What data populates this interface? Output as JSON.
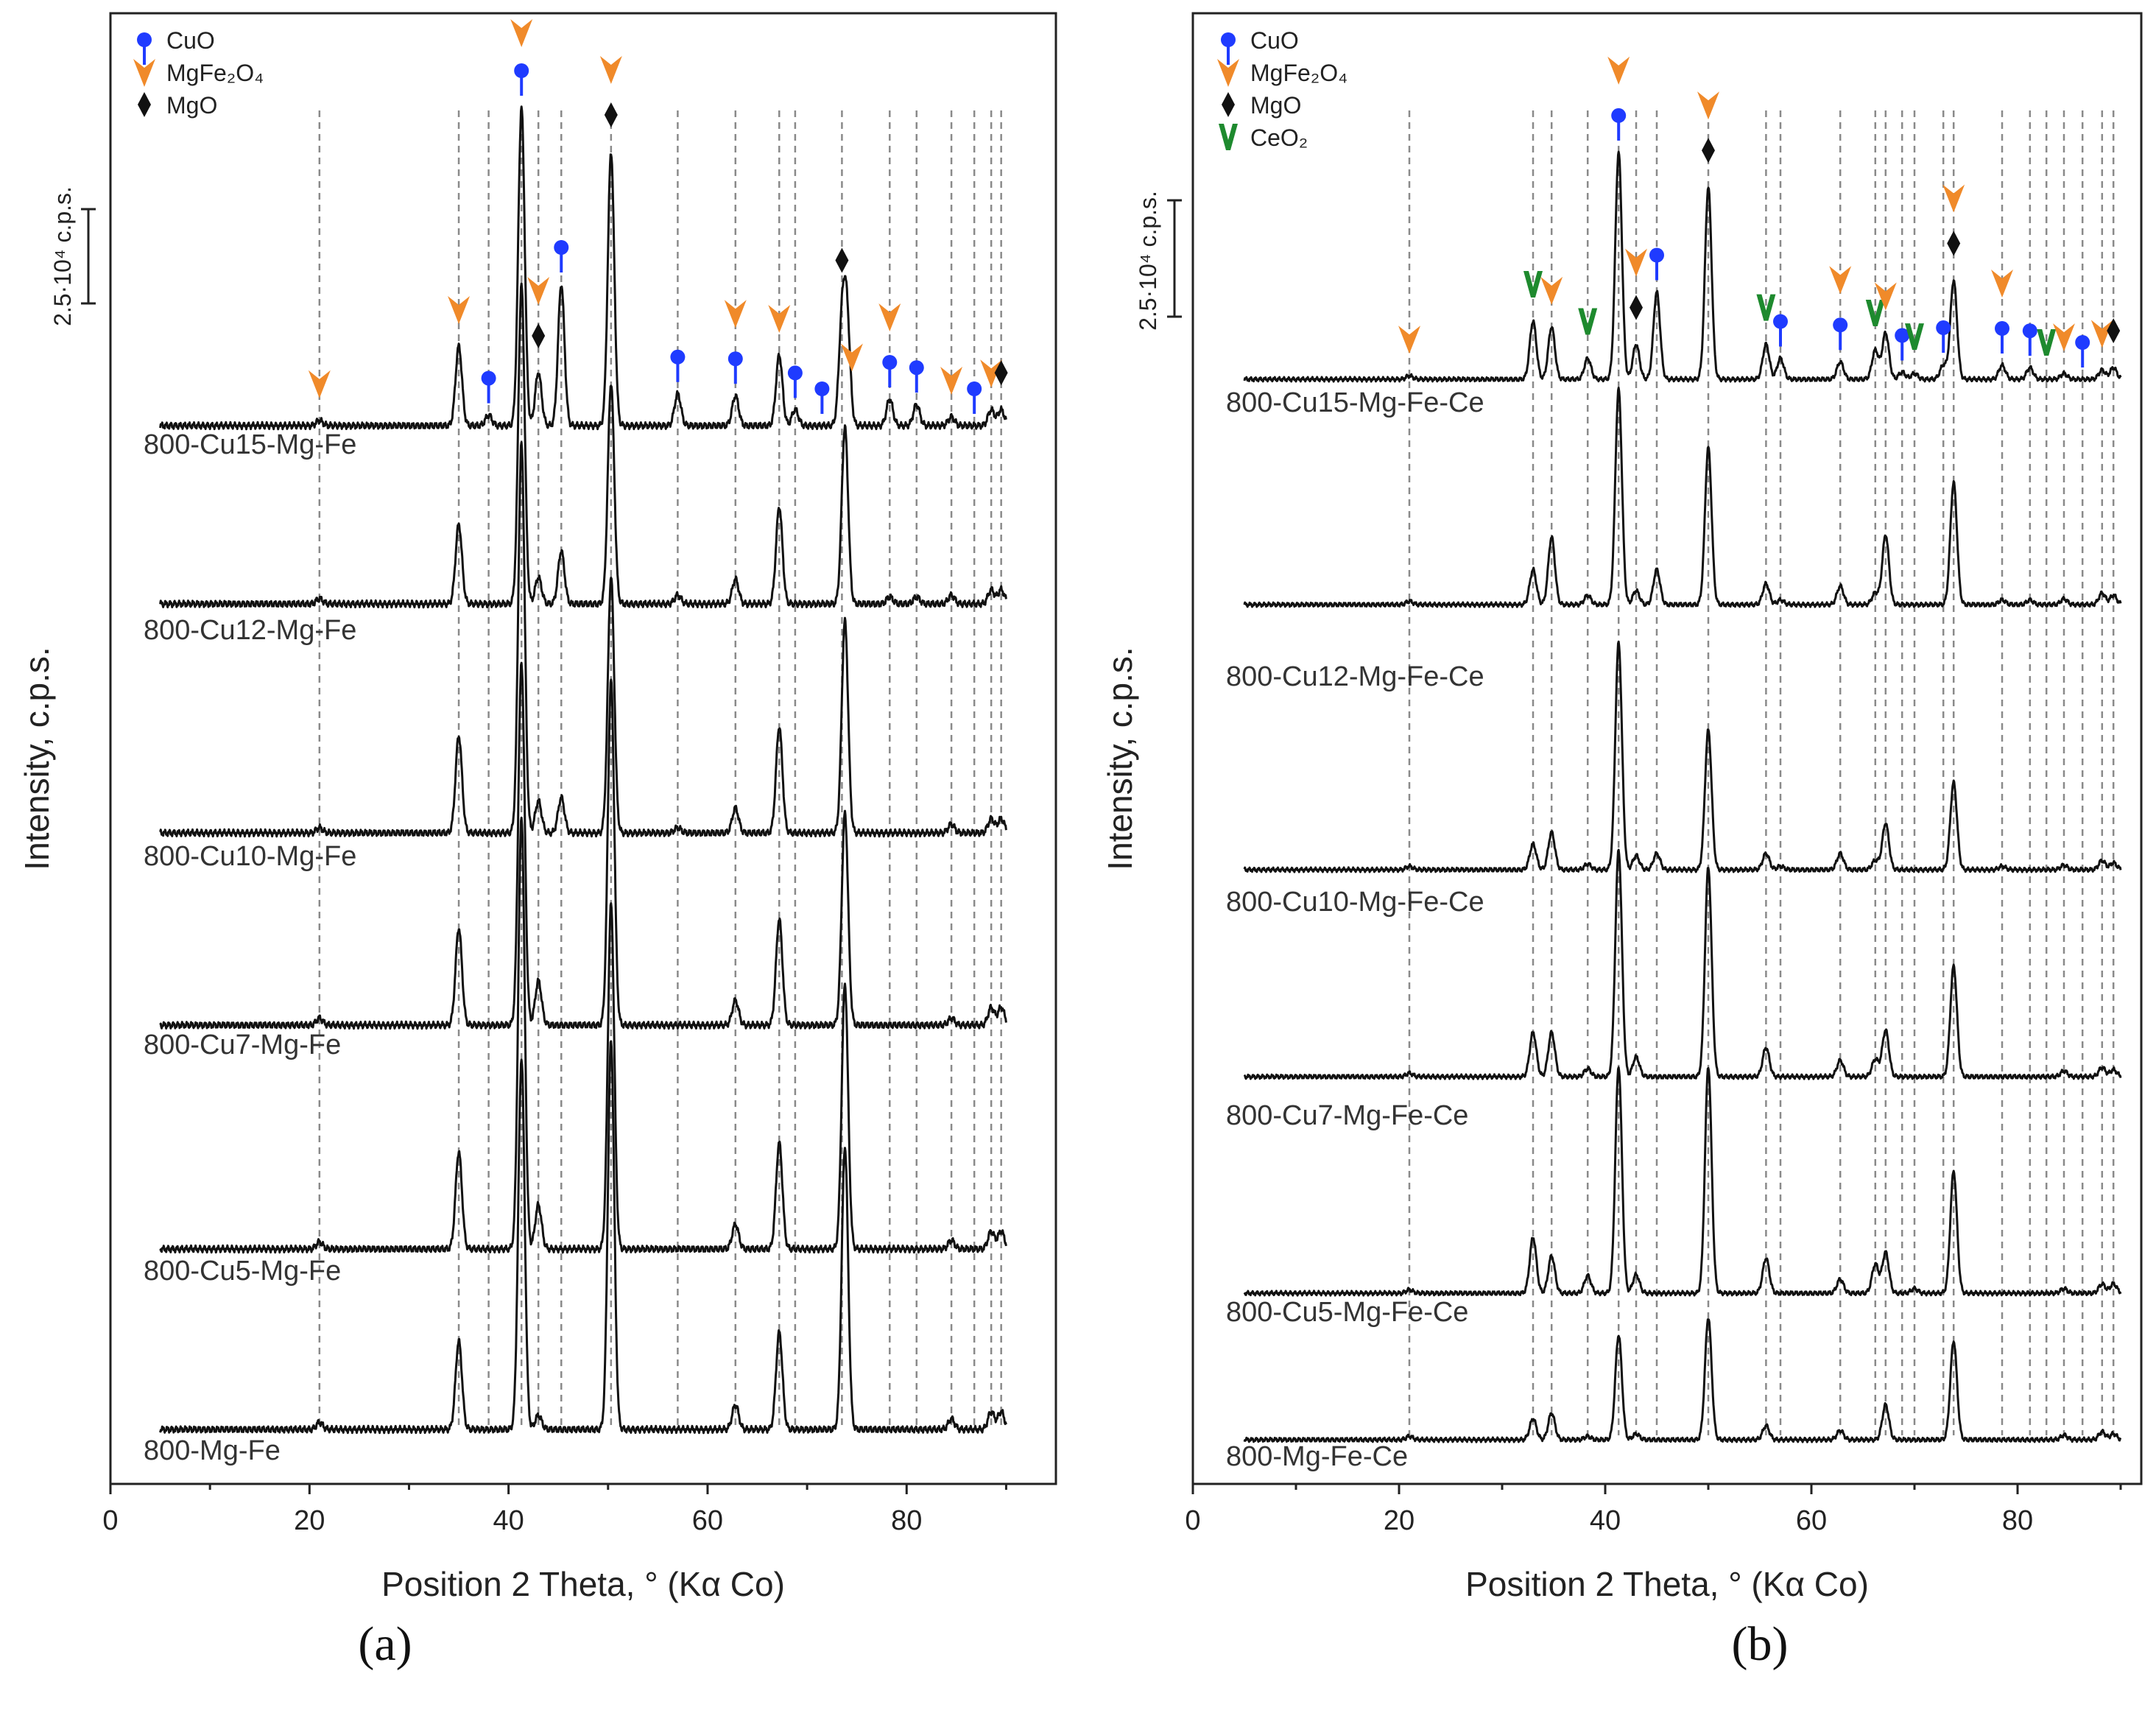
{
  "colors": {
    "CuO": "#1f3bff",
    "MgFe2O4": "#f08a2a",
    "MgO": "#111111",
    "CeO2": "#1e8a2e"
  },
  "chart_data": [
    {
      "type": "line",
      "panel_label": "(a)",
      "xlabel": "Position 2 Theta, ° (Kα Co)",
      "ylabel": "Intensity, c.p.s.",
      "xlim": [
        0,
        95
      ],
      "xticks": [
        "0",
        "20",
        "40",
        "60",
        "80"
      ],
      "scale_bar": "2.5·10⁴ c.p.s.",
      "legend": [
        {
          "name": "CuO",
          "marker": "CuO"
        },
        {
          "name": "MgFe₂O₄",
          "marker": "MgFe2O4"
        },
        {
          "name": "MgO",
          "marker": "MgO"
        }
      ],
      "reference_lines": [
        21.0,
        35.0,
        38.0,
        41.3,
        43.0,
        45.3,
        50.3,
        57.0,
        62.8,
        67.2,
        68.8,
        73.5,
        78.3,
        81.0,
        84.5,
        86.8,
        88.5,
        89.5
      ],
      "phase_markers": [
        {
          "phase": "MgFe2O4",
          "x": 21.0
        },
        {
          "phase": "MgFe2O4",
          "x": 35.0
        },
        {
          "phase": "CuO",
          "x": 38.0
        },
        {
          "phase": "CuO",
          "x": 41.3
        },
        {
          "phase": "MgFe2O4",
          "x": 41.3
        },
        {
          "phase": "MgO",
          "x": 43.0
        },
        {
          "phase": "MgFe2O4",
          "x": 43.0
        },
        {
          "phase": "CuO",
          "x": 45.3
        },
        {
          "phase": "MgO",
          "x": 50.3
        },
        {
          "phase": "MgFe2O4",
          "x": 50.3
        },
        {
          "phase": "CuO",
          "x": 57.0
        },
        {
          "phase": "CuO",
          "x": 62.8
        },
        {
          "phase": "MgFe2O4",
          "x": 62.8
        },
        {
          "phase": "MgFe2O4",
          "x": 67.2
        },
        {
          "phase": "CuO",
          "x": 68.8
        },
        {
          "phase": "CuO",
          "x": 71.5
        },
        {
          "phase": "MgO",
          "x": 73.5
        },
        {
          "phase": "MgFe2O4",
          "x": 74.5
        },
        {
          "phase": "CuO",
          "x": 78.3
        },
        {
          "phase": "MgFe2O4",
          "x": 78.3
        },
        {
          "phase": "CuO",
          "x": 81.0
        },
        {
          "phase": "MgFe2O4",
          "x": 84.5
        },
        {
          "phase": "CuO",
          "x": 86.8
        },
        {
          "phase": "MgFe2O4",
          "x": 88.5
        },
        {
          "phase": "MgO",
          "x": 89.5
        }
      ],
      "series": [
        {
          "name": "800-Cu15-Mg-Fe",
          "peaks": [
            [
              21.0,
              0.03
            ],
            [
              35.0,
              0.45
            ],
            [
              38.0,
              0.06
            ],
            [
              41.3,
              1.8
            ],
            [
              43.0,
              0.3
            ],
            [
              45.3,
              0.8
            ],
            [
              50.3,
              1.55
            ],
            [
              57.0,
              0.18
            ],
            [
              62.8,
              0.17
            ],
            [
              67.2,
              0.4
            ],
            [
              68.8,
              0.09
            ],
            [
              73.5,
              0.55
            ],
            [
              74.0,
              0.6
            ],
            [
              78.3,
              0.15
            ],
            [
              81.0,
              0.12
            ],
            [
              84.5,
              0.05
            ],
            [
              88.5,
              0.09
            ],
            [
              89.5,
              0.09
            ]
          ]
        },
        {
          "name": "800-Cu12-Mg-Fe",
          "peaks": [
            [
              21.0,
              0.03
            ],
            [
              35.0,
              0.45
            ],
            [
              41.3,
              1.8
            ],
            [
              43.0,
              0.15
            ],
            [
              45.3,
              0.3
            ],
            [
              50.3,
              1.25
            ],
            [
              57.0,
              0.05
            ],
            [
              62.8,
              0.14
            ],
            [
              67.2,
              0.55
            ],
            [
              73.8,
              1.0
            ],
            [
              78.3,
              0.04
            ],
            [
              81.0,
              0.04
            ],
            [
              84.5,
              0.05
            ],
            [
              88.5,
              0.08
            ],
            [
              89.5,
              0.08
            ]
          ]
        },
        {
          "name": "800-Cu10-Mg-Fe",
          "peaks": [
            [
              21.0,
              0.03
            ],
            [
              35.0,
              0.55
            ],
            [
              41.3,
              2.2
            ],
            [
              43.0,
              0.18
            ],
            [
              45.3,
              0.2
            ],
            [
              50.3,
              1.45
            ],
            [
              57.0,
              0.03
            ],
            [
              62.8,
              0.14
            ],
            [
              67.2,
              0.6
            ],
            [
              73.8,
              1.2
            ],
            [
              84.5,
              0.05
            ],
            [
              88.5,
              0.08
            ],
            [
              89.5,
              0.08
            ]
          ]
        },
        {
          "name": "800-Cu7-Mg-Fe",
          "peaks": [
            [
              21.0,
              0.04
            ],
            [
              35.0,
              0.55
            ],
            [
              41.3,
              2.05
            ],
            [
              43.0,
              0.25
            ],
            [
              50.3,
              1.95
            ],
            [
              62.8,
              0.14
            ],
            [
              67.2,
              0.6
            ],
            [
              73.8,
              1.2
            ],
            [
              84.5,
              0.04
            ],
            [
              88.5,
              0.1
            ],
            [
              89.5,
              0.1
            ]
          ]
        },
        {
          "name": "800-Cu5-Mg-Fe",
          "peaks": [
            [
              21.0,
              0.04
            ],
            [
              35.0,
              0.55
            ],
            [
              41.3,
              2.45
            ],
            [
              43.0,
              0.25
            ],
            [
              50.3,
              1.95
            ],
            [
              62.8,
              0.14
            ],
            [
              67.2,
              0.6
            ],
            [
              73.8,
              1.5
            ],
            [
              84.5,
              0.05
            ],
            [
              88.5,
              0.1
            ],
            [
              89.5,
              0.1
            ]
          ]
        },
        {
          "name": "800-Mg-Fe",
          "peaks": [
            [
              21.0,
              0.04
            ],
            [
              35.0,
              0.5
            ],
            [
              41.3,
              2.1
            ],
            [
              43.0,
              0.08
            ],
            [
              50.3,
              2.2
            ],
            [
              62.8,
              0.14
            ],
            [
              67.2,
              0.55
            ],
            [
              73.8,
              1.6
            ],
            [
              84.5,
              0.06
            ],
            [
              88.5,
              0.1
            ],
            [
              89.5,
              0.1
            ]
          ]
        }
      ]
    },
    {
      "type": "line",
      "panel_label": "(b)",
      "xlabel": "Position 2 Theta, ° (Kα Co)",
      "ylabel": "Intensity, c.p.s.",
      "xlim": [
        0,
        92
      ],
      "xticks": [
        "0",
        "20",
        "40",
        "60",
        "80"
      ],
      "scale_bar": "2.5·10⁴ c.p.s.",
      "legend": [
        {
          "name": "CuO",
          "marker": "CuO"
        },
        {
          "name": "MgFe₂O₄",
          "marker": "MgFe2O4"
        },
        {
          "name": "MgO",
          "marker": "MgO"
        },
        {
          "name": "CeO₂",
          "marker": "CeO2"
        }
      ],
      "reference_lines": [
        21.0,
        33.0,
        34.8,
        38.3,
        41.3,
        43.0,
        45.0,
        50.0,
        55.6,
        57.0,
        62.8,
        66.2,
        67.2,
        68.8,
        70.0,
        72.8,
        73.8,
        78.5,
        81.2,
        82.8,
        84.5,
        86.3,
        88.2,
        89.3
      ],
      "phase_markers": [
        {
          "phase": "MgFe2O4",
          "x": 21.0
        },
        {
          "phase": "CeO2",
          "x": 33.0
        },
        {
          "phase": "MgFe2O4",
          "x": 34.8
        },
        {
          "phase": "CeO2",
          "x": 38.3
        },
        {
          "phase": "CuO",
          "x": 41.3
        },
        {
          "phase": "MgFe2O4",
          "x": 41.3
        },
        {
          "phase": "MgO",
          "x": 43.0
        },
        {
          "phase": "MgFe2O4",
          "x": 43.0
        },
        {
          "phase": "CuO",
          "x": 45.0
        },
        {
          "phase": "MgO",
          "x": 50.0
        },
        {
          "phase": "MgFe2O4",
          "x": 50.0
        },
        {
          "phase": "CeO2",
          "x": 55.6
        },
        {
          "phase": "CuO",
          "x": 57.0
        },
        {
          "phase": "CuO",
          "x": 62.8
        },
        {
          "phase": "MgFe2O4",
          "x": 62.8
        },
        {
          "phase": "CeO2",
          "x": 66.2
        },
        {
          "phase": "MgFe2O4",
          "x": 67.2
        },
        {
          "phase": "CuO",
          "x": 68.8
        },
        {
          "phase": "CeO2",
          "x": 70.0
        },
        {
          "phase": "CuO",
          "x": 72.8
        },
        {
          "phase": "MgO",
          "x": 73.8
        },
        {
          "phase": "MgFe2O4",
          "x": 73.8
        },
        {
          "phase": "CuO",
          "x": 78.5
        },
        {
          "phase": "MgFe2O4",
          "x": 78.5
        },
        {
          "phase": "CuO",
          "x": 81.2
        },
        {
          "phase": "CeO2",
          "x": 82.8
        },
        {
          "phase": "MgFe2O4",
          "x": 84.5
        },
        {
          "phase": "CuO",
          "x": 86.3
        },
        {
          "phase": "MgFe2O4",
          "x": 88.2
        },
        {
          "phase": "MgO",
          "x": 89.3
        }
      ],
      "series": [
        {
          "name": "800-Cu15-Mg-Fe-Ce",
          "peaks": [
            [
              21.0,
              0.03
            ],
            [
              33.0,
              0.5
            ],
            [
              34.8,
              0.45
            ],
            [
              38.3,
              0.18
            ],
            [
              41.3,
              1.95
            ],
            [
              43.0,
              0.3
            ],
            [
              45.0,
              0.75
            ],
            [
              50.0,
              1.65
            ],
            [
              55.6,
              0.3
            ],
            [
              57.0,
              0.18
            ],
            [
              62.8,
              0.15
            ],
            [
              66.2,
              0.25
            ],
            [
              67.2,
              0.4
            ],
            [
              68.8,
              0.06
            ],
            [
              70.0,
              0.05
            ],
            [
              72.8,
              0.12
            ],
            [
              73.8,
              0.85
            ],
            [
              78.5,
              0.12
            ],
            [
              81.2,
              0.1
            ],
            [
              84.5,
              0.05
            ],
            [
              88.2,
              0.08
            ],
            [
              89.3,
              0.1
            ]
          ]
        },
        {
          "name": "800-Cu12-Mg-Fe-Ce",
          "peaks": [
            [
              21.0,
              0.03
            ],
            [
              33.0,
              0.3
            ],
            [
              34.8,
              0.58
            ],
            [
              38.3,
              0.08
            ],
            [
              41.3,
              1.85
            ],
            [
              43.0,
              0.12
            ],
            [
              45.0,
              0.3
            ],
            [
              50.0,
              1.35
            ],
            [
              55.6,
              0.18
            ],
            [
              57.0,
              0.04
            ],
            [
              62.8,
              0.16
            ],
            [
              66.2,
              0.1
            ],
            [
              67.2,
              0.6
            ],
            [
              73.8,
              1.05
            ],
            [
              78.5,
              0.04
            ],
            [
              81.2,
              0.04
            ],
            [
              84.5,
              0.05
            ],
            [
              88.2,
              0.1
            ],
            [
              89.3,
              0.08
            ]
          ]
        },
        {
          "name": "800-Cu10-Mg-Fe-Ce",
          "peaks": [
            [
              21.0,
              0.03
            ],
            [
              33.0,
              0.22
            ],
            [
              34.8,
              0.32
            ],
            [
              38.3,
              0.05
            ],
            [
              41.3,
              1.95
            ],
            [
              43.0,
              0.12
            ],
            [
              45.0,
              0.14
            ],
            [
              50.0,
              1.2
            ],
            [
              55.6,
              0.14
            ],
            [
              57.0,
              0.03
            ],
            [
              62.8,
              0.14
            ],
            [
              66.2,
              0.08
            ],
            [
              67.2,
              0.4
            ],
            [
              73.8,
              0.75
            ],
            [
              78.5,
              0.03
            ],
            [
              84.5,
              0.04
            ],
            [
              88.2,
              0.08
            ],
            [
              89.3,
              0.06
            ]
          ]
        },
        {
          "name": "800-Cu7-Mg-Fe-Ce",
          "peaks": [
            [
              21.0,
              0.03
            ],
            [
              33.0,
              0.38
            ],
            [
              34.8,
              0.38
            ],
            [
              38.3,
              0.07
            ],
            [
              41.3,
              1.95
            ],
            [
              43.0,
              0.17
            ],
            [
              50.0,
              1.8
            ],
            [
              55.6,
              0.25
            ],
            [
              62.8,
              0.14
            ],
            [
              66.2,
              0.15
            ],
            [
              67.2,
              0.4
            ],
            [
              73.8,
              0.95
            ],
            [
              84.5,
              0.05
            ],
            [
              88.2,
              0.08
            ],
            [
              89.3,
              0.06
            ]
          ]
        },
        {
          "name": "800-Cu5-Mg-Fe-Ce",
          "peaks": [
            [
              21.0,
              0.03
            ],
            [
              33.0,
              0.48
            ],
            [
              34.8,
              0.32
            ],
            [
              38.3,
              0.15
            ],
            [
              41.3,
              1.95
            ],
            [
              43.0,
              0.16
            ],
            [
              50.0,
              1.95
            ],
            [
              55.6,
              0.3
            ],
            [
              62.8,
              0.12
            ],
            [
              66.2,
              0.25
            ],
            [
              67.2,
              0.35
            ],
            [
              70.0,
              0.04
            ],
            [
              73.8,
              1.05
            ],
            [
              84.5,
              0.04
            ],
            [
              88.2,
              0.08
            ],
            [
              89.3,
              0.08
            ]
          ]
        },
        {
          "name": "800-Mg-Fe-Ce",
          "peaks": [
            [
              21.0,
              0.03
            ],
            [
              33.0,
              0.18
            ],
            [
              34.8,
              0.23
            ],
            [
              38.3,
              0.03
            ],
            [
              41.3,
              0.9
            ],
            [
              43.0,
              0.05
            ],
            [
              50.0,
              1.05
            ],
            [
              55.6,
              0.12
            ],
            [
              62.8,
              0.08
            ],
            [
              67.2,
              0.3
            ],
            [
              73.8,
              0.85
            ],
            [
              84.5,
              0.04
            ],
            [
              88.2,
              0.07
            ],
            [
              89.3,
              0.05
            ]
          ]
        }
      ]
    }
  ]
}
